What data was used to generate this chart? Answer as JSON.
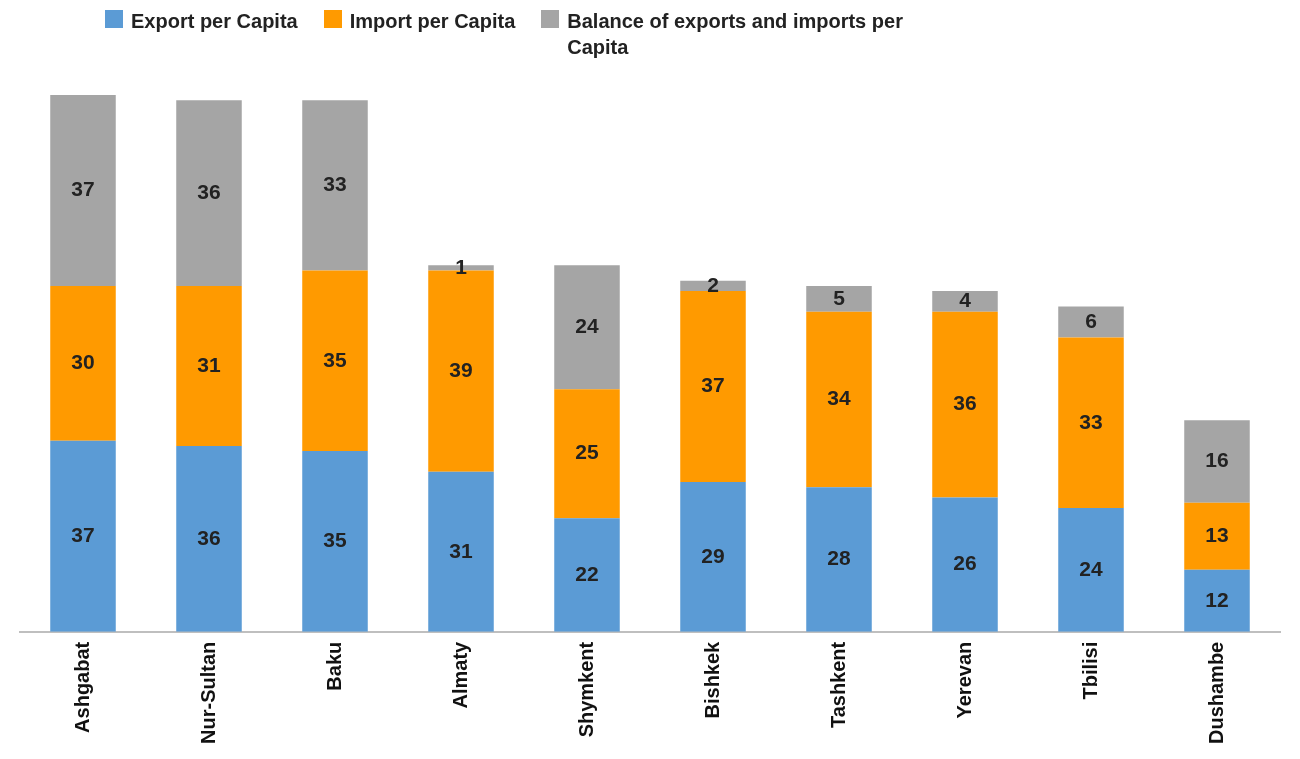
{
  "chart_data": {
    "type": "bar",
    "stacked": true,
    "data_labels": true,
    "legend": "top left",
    "grid": false,
    "categories": [
      "Ashgabat",
      "Nur-Sultan",
      "Baku",
      "Almaty",
      "Shymkent",
      "Bishkek",
      "Tashkent",
      "Yerevan",
      "Tbilisi",
      "Dushambe"
    ],
    "series": [
      {
        "name": "Export per Capita",
        "color": "#5b9bd5",
        "values": [
          37,
          36,
          35,
          31,
          22,
          29,
          28,
          26,
          24,
          12
        ]
      },
      {
        "name": "Import per Capita",
        "color": "#ff9a00",
        "values": [
          30,
          31,
          35,
          39,
          25,
          37,
          34,
          36,
          33,
          13
        ]
      },
      {
        "name": "Balance of exports and imports per Capita",
        "color": "#a5a5a5",
        "values": [
          37,
          36,
          33,
          1,
          24,
          2,
          5,
          4,
          6,
          16
        ]
      }
    ]
  }
}
